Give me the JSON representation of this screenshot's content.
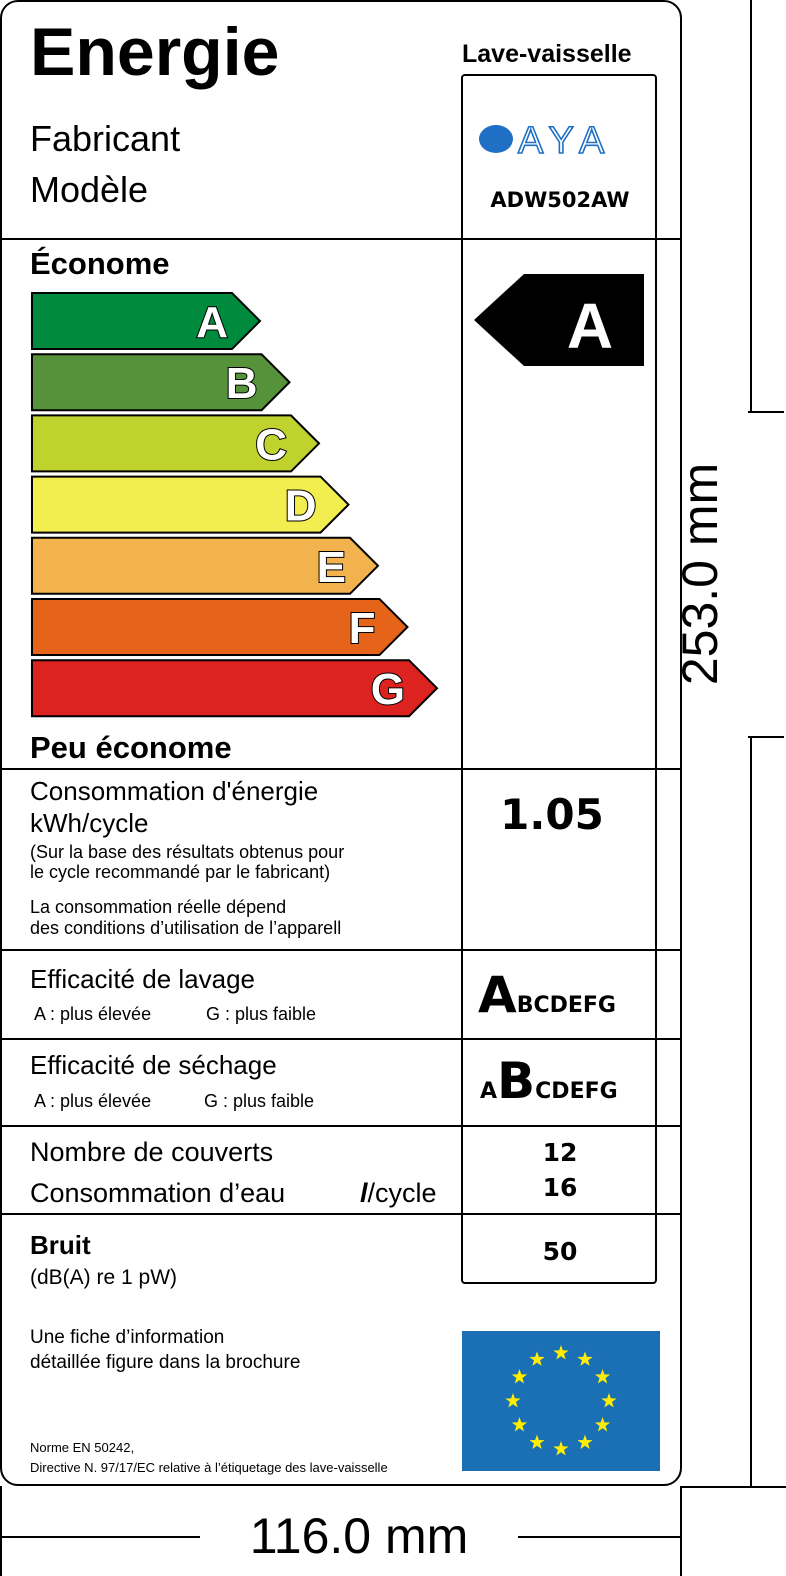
{
  "header": {
    "title": "Energie",
    "appliance": "Lave-vaisselle",
    "manufacturer_label": "Fabricant",
    "model_label": "Modèle",
    "brand": "AYA",
    "model": "ADW502AW"
  },
  "scale": {
    "top_label": "Économe",
    "bottom_label": "Peu économe",
    "classes": [
      {
        "letter": "A",
        "color": "#008a3e"
      },
      {
        "letter": "B",
        "color": "#56923a"
      },
      {
        "letter": "C",
        "color": "#bfd22e"
      },
      {
        "letter": "D",
        "color": "#f2ee4f"
      },
      {
        "letter": "E",
        "color": "#f2b24e"
      },
      {
        "letter": "F",
        "color": "#e5641a"
      },
      {
        "letter": "G",
        "color": "#dc231f"
      }
    ],
    "rating": "A"
  },
  "energy": {
    "label": "Consommation d'énergie",
    "unit": "kWh/cycle",
    "note1a": "(Sur la base des résultats obtenus pour",
    "note1b": "le cycle recommandé par le fabricant)",
    "note2a": "La consommation réelle dépend",
    "note2b": "des conditions d’utilisation de l’apparell",
    "value": "1.05"
  },
  "washing": {
    "label": "Efficacité de lavage",
    "best": "A : plus élevée",
    "worst": "G : plus faible",
    "class": "A",
    "rest": "BCDEFG"
  },
  "drying": {
    "label": "Efficacité de séchage",
    "best": "A : plus élevée",
    "worst": "G : plus faible",
    "before": "A",
    "class": "B",
    "rest": "CDEFG"
  },
  "capacity": {
    "label": "Nombre de couverts",
    "value": "12",
    "water_label": "Consommation d’eau",
    "water_unit_l": "l",
    "water_unit": "/cycle",
    "water_value": "16"
  },
  "noise": {
    "label": "Bruit",
    "unit": "(dB(A) re 1 pW)",
    "value": "50"
  },
  "footer": {
    "info1": "Une fiche d’information",
    "info2": "détaillée figure dans la brochure",
    "norm1": "Norme EN 50242,",
    "norm2": "Directive N. 97/17/EC relative à l’étiquetage des lave-vaisselle"
  },
  "dimensions": {
    "width": "116.0 mm",
    "height": "253.0 mm"
  },
  "colors": {
    "eu_blue": "#1b6fb5",
    "eu_star": "#ffee00",
    "brand_blue": "#1f6fc5"
  }
}
